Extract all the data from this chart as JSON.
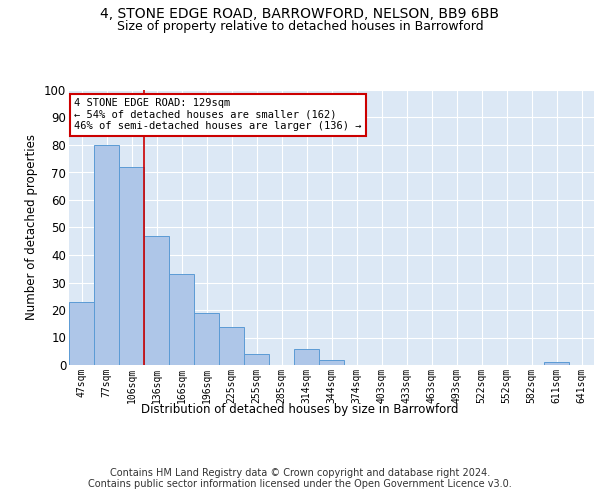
{
  "title": "4, STONE EDGE ROAD, BARROWFORD, NELSON, BB9 6BB",
  "subtitle": "Size of property relative to detached houses in Barrowford",
  "xlabel": "Distribution of detached houses by size in Barrowford",
  "ylabel": "Number of detached properties",
  "bar_labels": [
    "47sqm",
    "77sqm",
    "106sqm",
    "136sqm",
    "166sqm",
    "196sqm",
    "225sqm",
    "255sqm",
    "285sqm",
    "314sqm",
    "344sqm",
    "374sqm",
    "403sqm",
    "433sqm",
    "463sqm",
    "493sqm",
    "522sqm",
    "552sqm",
    "582sqm",
    "611sqm",
    "641sqm"
  ],
  "bar_values": [
    23,
    80,
    72,
    47,
    33,
    19,
    14,
    4,
    0,
    6,
    2,
    0,
    0,
    0,
    0,
    0,
    0,
    0,
    0,
    1,
    0
  ],
  "bar_color": "#aec6e8",
  "bar_edgecolor": "#5b9bd5",
  "background_color": "#dce8f5",
  "grid_color": "#ffffff",
  "vline_color": "#cc0000",
  "vline_index": 2.5,
  "annotation_text": "4 STONE EDGE ROAD: 129sqm\n← 54% of detached houses are smaller (162)\n46% of semi-detached houses are larger (136) →",
  "annotation_box_color": "#cc0000",
  "ylim": [
    0,
    100
  ],
  "yticks": [
    0,
    10,
    20,
    30,
    40,
    50,
    60,
    70,
    80,
    90,
    100
  ],
  "title_fontsize": 10,
  "subtitle_fontsize": 9,
  "footer": "Contains HM Land Registry data © Crown copyright and database right 2024.\nContains public sector information licensed under the Open Government Licence v3.0."
}
